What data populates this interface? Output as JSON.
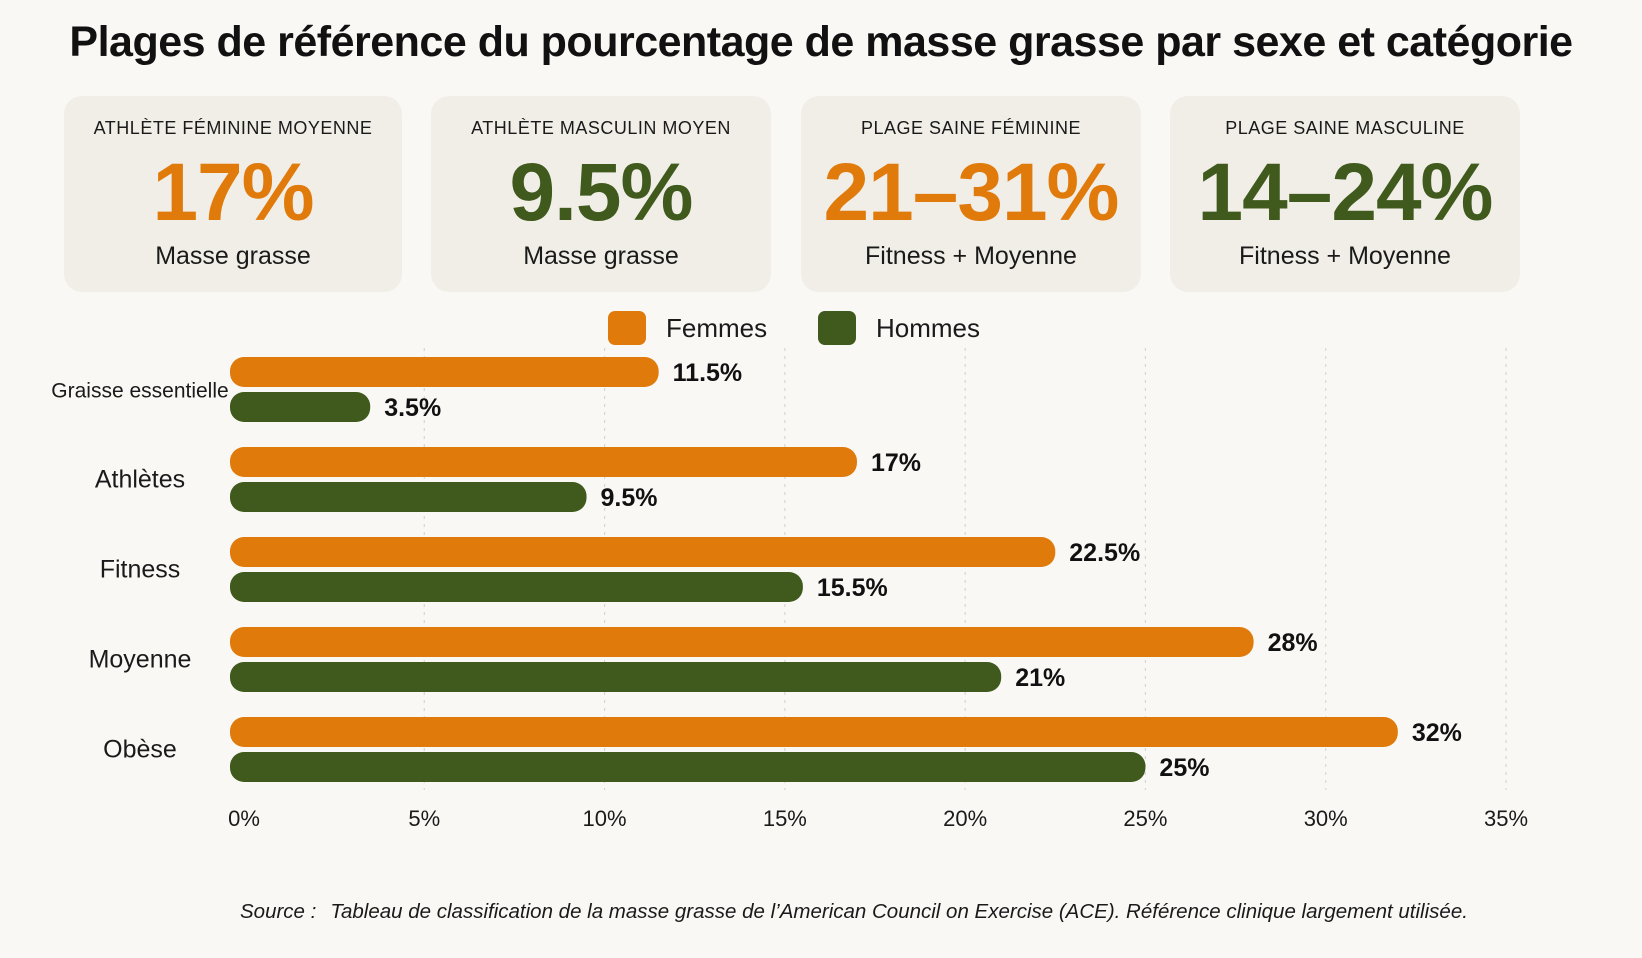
{
  "title": "Plages de référence du pourcentage de masse grasse par sexe et catégorie",
  "cards": [
    {
      "label": "ATHLÈTE FÉMININE MOYENNE",
      "value": "17%",
      "sub": "Masse grasse",
      "color": "#e07a0b"
    },
    {
      "label": "ATHLÈTE MASCULIN MOYEN",
      "value": "9.5%",
      "sub": "Masse grasse",
      "color": "#3f5a1c"
    },
    {
      "label": "PLAGE SAINE FÉMININE",
      "value": "21–31%",
      "sub": "Fitness + Moyenne",
      "color": "#e07a0b"
    },
    {
      "label": "PLAGE SAINE MASCULINE",
      "value": "14–24%",
      "sub": "Fitness + Moyenne",
      "color": "#3f5a1c"
    }
  ],
  "legend": [
    {
      "label": "Femmes",
      "color": "#e07a0b"
    },
    {
      "label": "Hommes",
      "color": "#3f5a1c"
    }
  ],
  "chart_data": {
    "type": "bar",
    "orientation": "horizontal",
    "categories": [
      "Graisse essentielle",
      "Athlètes",
      "Fitness",
      "Moyenne",
      "Obèse"
    ],
    "series": [
      {
        "name": "Femmes",
        "values": [
          11.5,
          17,
          22.5,
          28,
          32
        ],
        "labels": [
          "11.5%",
          "17%",
          "22.5%",
          "28%",
          "32%"
        ],
        "color": "#e07a0b"
      },
      {
        "name": "Hommes",
        "values": [
          3.5,
          9.5,
          15.5,
          21,
          25
        ],
        "labels": [
          "3.5%",
          "9.5%",
          "15.5%",
          "21%",
          "25%"
        ],
        "color": "#3f5a1c"
      }
    ],
    "xticks": [
      0,
      5,
      10,
      15,
      20,
      25,
      30,
      35
    ],
    "xtick_labels": [
      "0%",
      "5%",
      "10%",
      "15%",
      "20%",
      "25%",
      "30%",
      "35%"
    ],
    "xlim": [
      0,
      35
    ],
    "grid": true,
    "legend_position": "top-center"
  },
  "source": {
    "prefix": "Source :",
    "text": "Tableau  de  classification de la masse grasse de l’American Council on Exercise (ACE). Référence clinique largement utilisée."
  }
}
